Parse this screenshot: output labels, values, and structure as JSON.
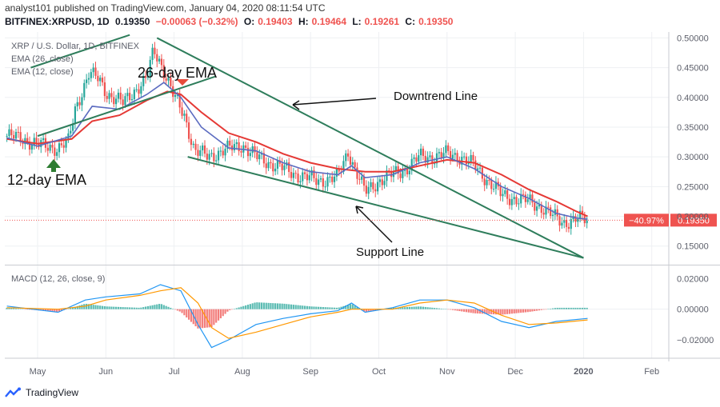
{
  "header": {
    "line1": "analyst101 published on TradingView.com, January 04, 2020 08:11:54 UTC",
    "symbol": "BITFINEX:XRPUSD, 1D",
    "last": "0.19350",
    "change": "−0.00063 (−0.32%)",
    "open_label": "O:",
    "open": "0.19403",
    "high_label": "H:",
    "high": "0.19464",
    "low_label": "L:",
    "low": "0.19261",
    "close_label": "C:",
    "close": "0.19350"
  },
  "legend": {
    "title": "XRP / U.S. Dollar, 1D, BITFINEX",
    "ema26": "EMA (26, close)",
    "ema12": "EMA (12, close)",
    "macd": "MACD (12, 26, close, 9)"
  },
  "annotations": {
    "ema26": "26-day EMA",
    "ema12": "12-day EMA",
    "downtrend": "Downtrend Line",
    "support": "Support Line"
  },
  "price_badge": {
    "pct": "−40.97%",
    "price": "0.19350"
  },
  "footer": {
    "brand": "TradingView"
  },
  "colors": {
    "up": "#26a69a",
    "down": "#ef5350",
    "ema26": "#e53935",
    "ema12": "#5b6bc0",
    "trend": "#2e7d5b",
    "macd": "#2196f3",
    "signal": "#ff9800"
  },
  "chart_data": {
    "type": "line",
    "title": "XRP / U.S. Dollar, 1D, BITFINEX",
    "x_ticks": [
      "May",
      "Jun",
      "Jul",
      "Aug",
      "Sep",
      "Oct",
      "Nov",
      "Dec",
      "2020",
      "Feb"
    ],
    "y_ticks": [
      "0.50000",
      "0.45000",
      "0.40000",
      "0.35000",
      "0.30000",
      "0.25000",
      "0.20000",
      "0.15000"
    ],
    "macd_y_ticks": [
      "0.02000",
      "0.00000",
      "−0.02000"
    ],
    "ylim": [
      0.12,
      0.51
    ],
    "macd_ylim": [
      -0.032,
      0.028
    ],
    "x_month_index": [
      0,
      1,
      2,
      3,
      4,
      5,
      6,
      7,
      8,
      9
    ],
    "close_path": [
      [
        -0.45,
        0.335
      ],
      [
        -0.2,
        0.33
      ],
      [
        0.0,
        0.32
      ],
      [
        0.3,
        0.315
      ],
      [
        0.45,
        0.325
      ],
      [
        0.55,
        0.38
      ],
      [
        0.65,
        0.41
      ],
      [
        0.75,
        0.44
      ],
      [
        0.9,
        0.43
      ],
      [
        1.0,
        0.41
      ],
      [
        1.1,
        0.4
      ],
      [
        1.25,
        0.39
      ],
      [
        1.4,
        0.41
      ],
      [
        1.6,
        0.43
      ],
      [
        1.7,
        0.48
      ],
      [
        1.8,
        0.46
      ],
      [
        1.9,
        0.43
      ],
      [
        2.0,
        0.4
      ],
      [
        2.15,
        0.37
      ],
      [
        2.3,
        0.31
      ],
      [
        2.5,
        0.3
      ],
      [
        2.7,
        0.31
      ],
      [
        3.0,
        0.32
      ],
      [
        3.2,
        0.3
      ],
      [
        3.4,
        0.29
      ],
      [
        3.6,
        0.28
      ],
      [
        3.8,
        0.27
      ],
      [
        4.1,
        0.26
      ],
      [
        4.4,
        0.265
      ],
      [
        4.55,
        0.31
      ],
      [
        4.65,
        0.28
      ],
      [
        4.8,
        0.24
      ],
      [
        5.0,
        0.26
      ],
      [
        5.2,
        0.27
      ],
      [
        5.4,
        0.28
      ],
      [
        5.6,
        0.3
      ],
      [
        5.8,
        0.3
      ],
      [
        6.0,
        0.305
      ],
      [
        6.2,
        0.3
      ],
      [
        6.4,
        0.285
      ],
      [
        6.6,
        0.26
      ],
      [
        6.8,
        0.235
      ],
      [
        7.0,
        0.23
      ],
      [
        7.2,
        0.225
      ],
      [
        7.4,
        0.215
      ],
      [
        7.55,
        0.2
      ],
      [
        7.7,
        0.19
      ],
      [
        7.9,
        0.195
      ],
      [
        8.0,
        0.195
      ],
      [
        8.06,
        0.1935
      ]
    ],
    "series": [
      {
        "name": "EMA (26, close)",
        "points": [
          [
            -0.45,
            0.33
          ],
          [
            0.0,
            0.322
          ],
          [
            0.5,
            0.33
          ],
          [
            0.8,
            0.36
          ],
          [
            1.2,
            0.37
          ],
          [
            1.6,
            0.395
          ],
          [
            1.9,
            0.41
          ],
          [
            2.1,
            0.405
          ],
          [
            2.4,
            0.375
          ],
          [
            2.8,
            0.34
          ],
          [
            3.2,
            0.325
          ],
          [
            3.6,
            0.305
          ],
          [
            4.0,
            0.29
          ],
          [
            4.4,
            0.28
          ],
          [
            4.8,
            0.275
          ],
          [
            5.2,
            0.275
          ],
          [
            5.6,
            0.285
          ],
          [
            6.0,
            0.295
          ],
          [
            6.4,
            0.29
          ],
          [
            6.8,
            0.27
          ],
          [
            7.2,
            0.245
          ],
          [
            7.6,
            0.225
          ],
          [
            7.9,
            0.208
          ],
          [
            8.06,
            0.2
          ]
        ]
      },
      {
        "name": "EMA (12, close)",
        "points": [
          [
            -0.45,
            0.332
          ],
          [
            0.0,
            0.318
          ],
          [
            0.5,
            0.335
          ],
          [
            0.8,
            0.385
          ],
          [
            1.2,
            0.38
          ],
          [
            1.6,
            0.405
          ],
          [
            1.85,
            0.425
          ],
          [
            2.1,
            0.4
          ],
          [
            2.4,
            0.35
          ],
          [
            2.8,
            0.315
          ],
          [
            3.2,
            0.31
          ],
          [
            3.6,
            0.29
          ],
          [
            4.0,
            0.275
          ],
          [
            4.4,
            0.27
          ],
          [
            4.6,
            0.285
          ],
          [
            4.8,
            0.265
          ],
          [
            5.2,
            0.27
          ],
          [
            5.6,
            0.29
          ],
          [
            6.0,
            0.3
          ],
          [
            6.4,
            0.28
          ],
          [
            6.8,
            0.25
          ],
          [
            7.2,
            0.23
          ],
          [
            7.6,
            0.205
          ],
          [
            7.9,
            0.197
          ],
          [
            8.06,
            0.195
          ]
        ]
      }
    ],
    "trend_lines": [
      {
        "name": "Downtrend Line",
        "points": [
          [
            1.75,
            0.5
          ],
          [
            8.0,
            0.13
          ]
        ]
      },
      {
        "name": "Support Line",
        "points": [
          [
            2.2,
            0.3
          ],
          [
            8.0,
            0.13
          ]
        ]
      },
      {
        "name": "26-day EMA channel",
        "points": [
          [
            0.0,
            0.335
          ],
          [
            2.6,
            0.435
          ]
        ]
      },
      {
        "name": "12-day EMA channel",
        "points": [
          [
            -0.1,
            0.45
          ],
          [
            1.35,
            0.505
          ]
        ]
      }
    ],
    "macd": [
      [
        -0.45,
        0.002
      ],
      [
        0.3,
        -0.002
      ],
      [
        0.7,
        0.006
      ],
      [
        1.0,
        0.008
      ],
      [
        1.5,
        0.01
      ],
      [
        1.8,
        0.016
      ],
      [
        2.1,
        0.012
      ],
      [
        2.35,
        -0.01
      ],
      [
        2.55,
        -0.025
      ],
      [
        2.8,
        -0.02
      ],
      [
        3.2,
        -0.01
      ],
      [
        3.6,
        -0.006
      ],
      [
        4.0,
        -0.003
      ],
      [
        4.4,
        -0.001
      ],
      [
        4.6,
        0.004
      ],
      [
        4.8,
        -0.002
      ],
      [
        5.2,
        0.001
      ],
      [
        5.6,
        0.006
      ],
      [
        6.0,
        0.006
      ],
      [
        6.4,
        0.001
      ],
      [
        6.8,
        -0.008
      ],
      [
        7.2,
        -0.012
      ],
      [
        7.6,
        -0.008
      ],
      [
        8.06,
        -0.006
      ]
    ],
    "signal": [
      [
        -0.45,
        0.001
      ],
      [
        0.3,
        0.0
      ],
      [
        0.7,
        0.002
      ],
      [
        1.0,
        0.006
      ],
      [
        1.5,
        0.009
      ],
      [
        1.8,
        0.012
      ],
      [
        2.1,
        0.014
      ],
      [
        2.35,
        0.004
      ],
      [
        2.55,
        -0.012
      ],
      [
        2.8,
        -0.019
      ],
      [
        3.2,
        -0.015
      ],
      [
        3.6,
        -0.01
      ],
      [
        4.0,
        -0.005
      ],
      [
        4.4,
        -0.002
      ],
      [
        4.6,
        0.0
      ],
      [
        4.8,
        0.0
      ],
      [
        5.2,
        0.0
      ],
      [
        5.6,
        0.004
      ],
      [
        6.0,
        0.006
      ],
      [
        6.4,
        0.004
      ],
      [
        6.8,
        -0.004
      ],
      [
        7.2,
        -0.01
      ],
      [
        7.6,
        -0.009
      ],
      [
        8.06,
        -0.007
      ]
    ]
  }
}
